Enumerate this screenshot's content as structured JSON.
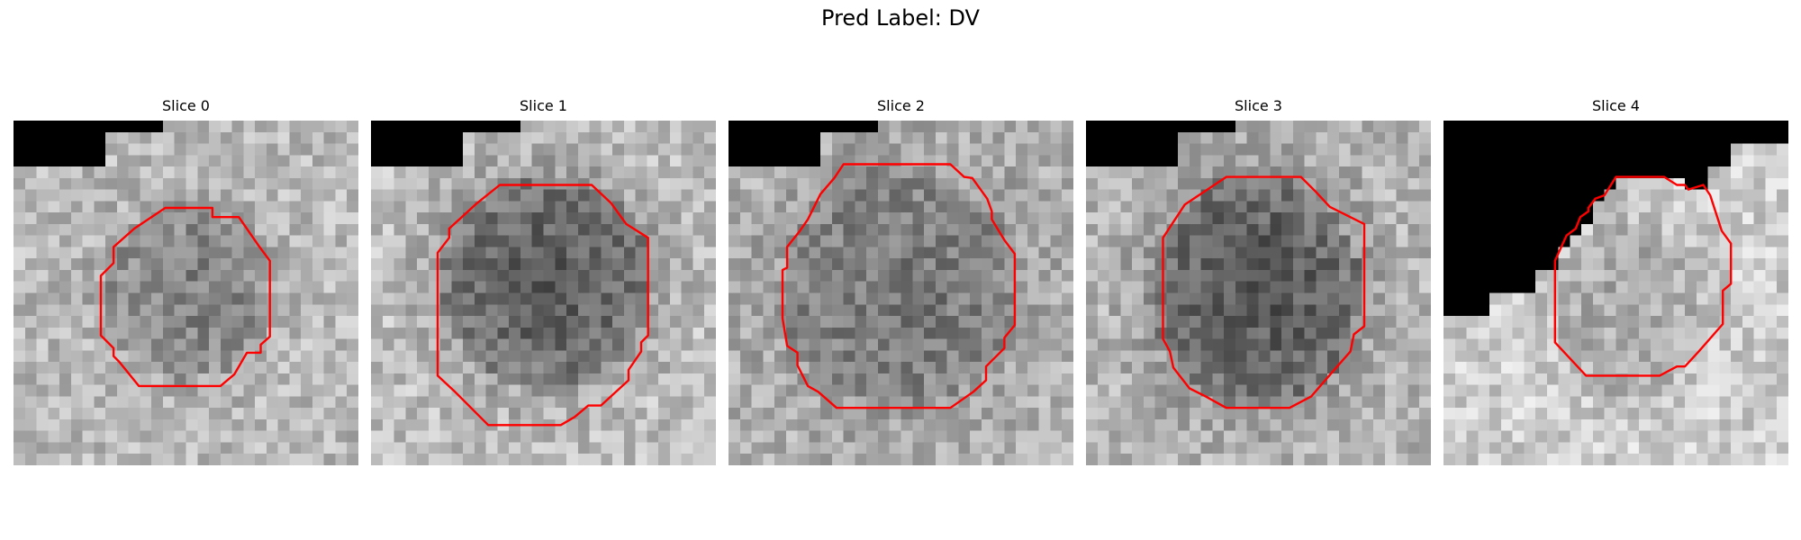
{
  "figure": {
    "title": "Pred Label: DV"
  },
  "panels": [
    {
      "title": "Slice 0"
    },
    {
      "title": "Slice 1"
    },
    {
      "title": "Slice 2"
    },
    {
      "title": "Slice 3"
    },
    {
      "title": "Slice 4"
    }
  ],
  "colors": {
    "background": "#ffffff",
    "contour": "#ff0000",
    "mask": "#000000"
  }
}
